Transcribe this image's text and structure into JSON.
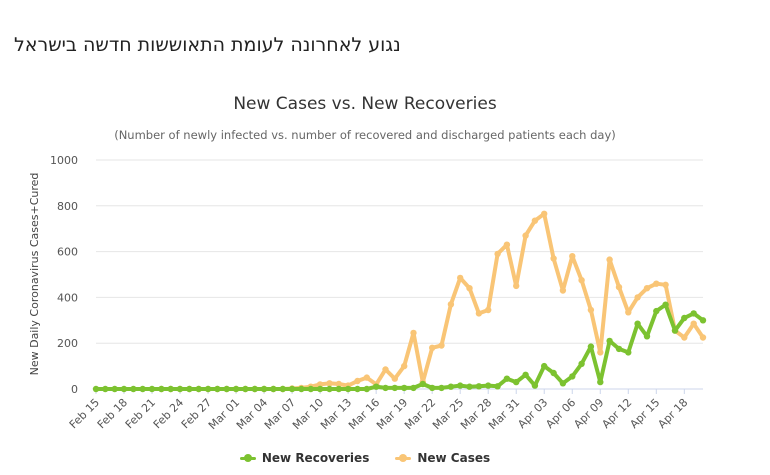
{
  "page": {
    "heading": "נגוע לאחרונה לעומת התאוששות חדשה בישראל"
  },
  "chart_data": {
    "type": "line",
    "title": "New Cases vs. New Recoveries",
    "subtitle": "(Number of newly infected vs. number of recovered and discharged patients each day)",
    "ylabel": "New Daily Coronavirus Cases+Cured",
    "xlabel": "",
    "ylim": [
      0,
      1000
    ],
    "yticks": [
      0,
      200,
      400,
      600,
      800,
      1000
    ],
    "grid": true,
    "legend_position": "bottom-center",
    "categories": [
      "Feb 15",
      "Feb 16",
      "Feb 17",
      "Feb 18",
      "Feb 19",
      "Feb 20",
      "Feb 21",
      "Feb 22",
      "Feb 23",
      "Feb 24",
      "Feb 25",
      "Feb 26",
      "Feb 27",
      "Feb 28",
      "Feb 29",
      "Mar 01",
      "Mar 02",
      "Mar 03",
      "Mar 04",
      "Mar 05",
      "Mar 06",
      "Mar 07",
      "Mar 08",
      "Mar 09",
      "Mar 10",
      "Mar 11",
      "Mar 12",
      "Mar 13",
      "Mar 14",
      "Mar 15",
      "Mar 16",
      "Mar 17",
      "Mar 18",
      "Mar 19",
      "Mar 20",
      "Mar 21",
      "Mar 22",
      "Mar 23",
      "Mar 24",
      "Mar 25",
      "Mar 26",
      "Mar 27",
      "Mar 28",
      "Mar 29",
      "Mar 30",
      "Mar 31",
      "Apr 01",
      "Apr 02",
      "Apr 03",
      "Apr 04",
      "Apr 05",
      "Apr 06",
      "Apr 07",
      "Apr 08",
      "Apr 09",
      "Apr 10",
      "Apr 11",
      "Apr 12",
      "Apr 13",
      "Apr 14",
      "Apr 15",
      "Apr 16",
      "Apr 17",
      "Apr 18",
      "Apr 19",
      "Apr 20"
    ],
    "x_tick_labels": [
      "Feb 15",
      "Feb 18",
      "Feb 21",
      "Feb 24",
      "Feb 27",
      "Mar 01",
      "Mar 04",
      "Mar 07",
      "Mar 10",
      "Mar 13",
      "Mar 16",
      "Mar 19",
      "Mar 22",
      "Mar 25",
      "Mar 28",
      "Mar 31",
      "Apr 03",
      "Apr 06",
      "Apr 09",
      "Apr 12",
      "Apr 15",
      "Apr 18"
    ],
    "series": [
      {
        "name": "New Recoveries",
        "color": "#7cc230",
        "values": [
          0,
          0,
          0,
          0,
          0,
          0,
          0,
          0,
          0,
          0,
          0,
          0,
          0,
          0,
          0,
          0,
          0,
          0,
          0,
          0,
          0,
          0,
          0,
          0,
          0,
          0,
          0,
          0,
          0,
          0,
          10,
          5,
          5,
          5,
          5,
          22,
          5,
          5,
          10,
          15,
          10,
          12,
          15,
          12,
          45,
          30,
          62,
          15,
          100,
          70,
          25,
          55,
          110,
          185,
          30,
          210,
          175,
          160,
          285,
          230,
          340,
          368,
          255,
          310,
          330,
          300
        ]
      },
      {
        "name": "New Cases",
        "color": "#f9c576",
        "values": [
          null,
          null,
          null,
          null,
          null,
          null,
          null,
          0,
          0,
          0,
          0,
          0,
          0,
          0,
          0,
          0,
          0,
          0,
          0,
          0,
          0,
          2,
          5,
          10,
          20,
          25,
          22,
          15,
          35,
          50,
          20,
          85,
          45,
          100,
          245,
          30,
          180,
          190,
          370,
          485,
          440,
          330,
          345,
          590,
          630,
          450,
          670,
          735,
          765,
          570,
          430,
          580,
          475,
          345,
          160,
          565,
          445,
          335,
          400,
          440,
          460,
          455,
          255,
          225,
          285,
          225
        ]
      }
    ]
  }
}
